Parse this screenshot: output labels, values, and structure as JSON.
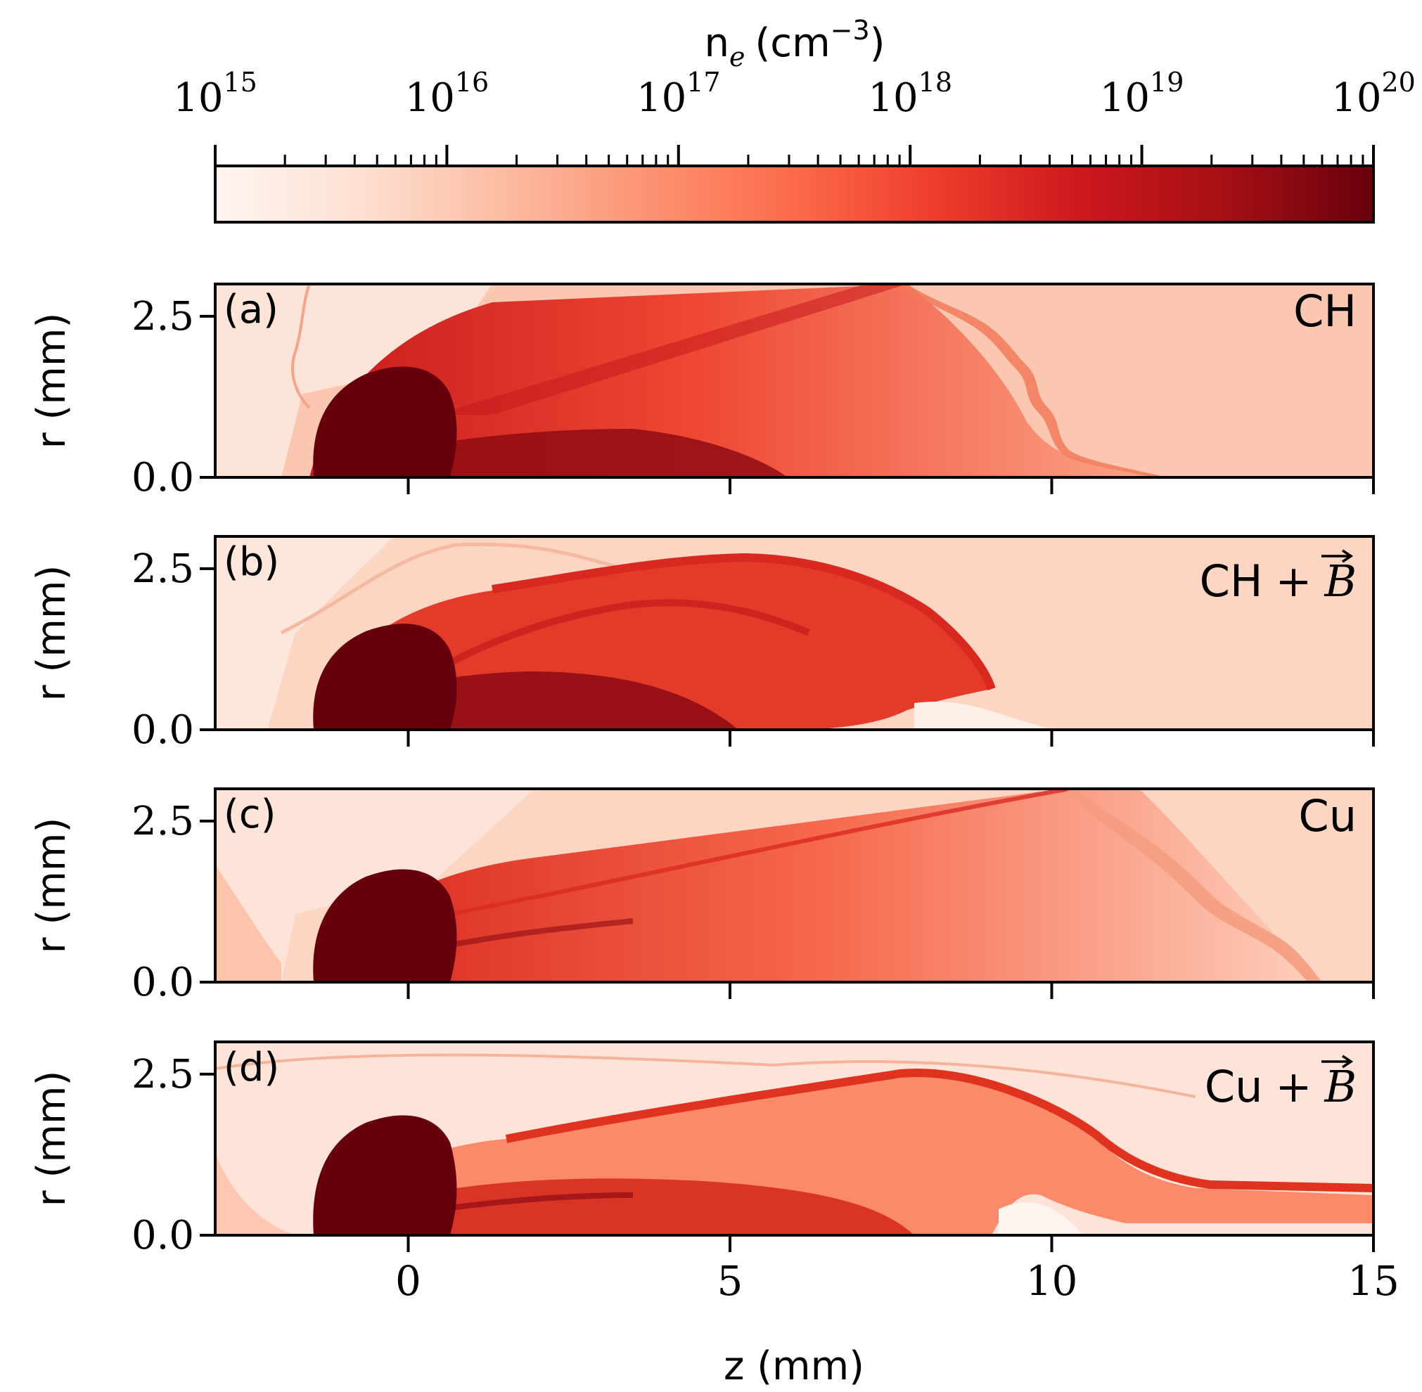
{
  "chart_data": {
    "type": "heatmap",
    "colorbar": {
      "label_main": "n",
      "label_sub": "e",
      "label_unit": "(cm",
      "label_exp": "−3",
      "label_close": ")",
      "scale": "log",
      "range": [
        1000000000000000.0,
        1e+20
      ],
      "ticks": [
        {
          "base": "10",
          "exp": "15"
        },
        {
          "base": "10",
          "exp": "16"
        },
        {
          "base": "10",
          "exp": "17"
        },
        {
          "base": "10",
          "exp": "18"
        },
        {
          "base": "10",
          "exp": "19"
        },
        {
          "base": "10",
          "exp": "20"
        }
      ],
      "colors": [
        "#fff5f0",
        "#fee0d2",
        "#fcbba1",
        "#fc9272",
        "#fb6a4a",
        "#ef3b2c",
        "#cb181d",
        "#a50f15",
        "#67000d"
      ]
    },
    "xlabel": "z (mm)",
    "ylabel": "r (mm)",
    "xlim": [
      -3,
      15
    ],
    "ylim": [
      0,
      3
    ],
    "xticks": [
      0,
      5,
      10,
      15
    ],
    "xtick_labels": [
      "0",
      "5",
      "10",
      "15"
    ],
    "yticks": [
      0.0,
      2.5
    ],
    "ytick_labels": [
      "0.0",
      "2.5"
    ],
    "panels": [
      {
        "id": "a",
        "tag": "(a)",
        "name": "CH",
        "has_B": false
      },
      {
        "id": "b",
        "tag": "(b)",
        "name": "CH",
        "has_B": true
      },
      {
        "id": "c",
        "tag": "(c)",
        "name": "Cu",
        "has_B": false
      },
      {
        "id": "d",
        "tag": "(d)",
        "name": "Cu",
        "has_B": true
      }
    ],
    "plus": "+",
    "field_symbol": "B"
  }
}
